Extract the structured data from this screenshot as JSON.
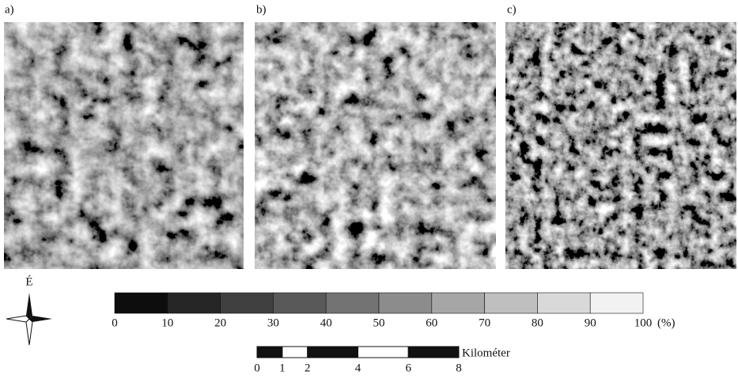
{
  "panels": [
    {
      "label": "a)"
    },
    {
      "label": "b)"
    },
    {
      "label": "c)"
    }
  ],
  "north_arrow": {
    "label": "É"
  },
  "legend": {
    "ticks": [
      0,
      10,
      20,
      30,
      40,
      50,
      60,
      70,
      80,
      90,
      100
    ],
    "unit": "(%)"
  },
  "scale_bar": {
    "ticks": [
      0,
      1,
      2,
      4,
      6,
      8
    ],
    "unit": "Kilométer"
  }
}
